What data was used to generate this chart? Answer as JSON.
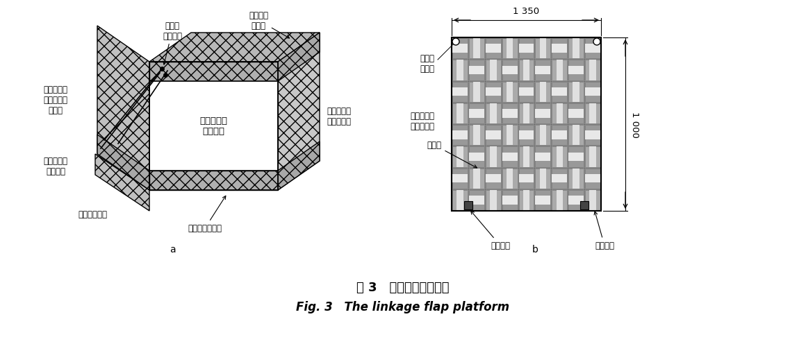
{
  "title_zh": "图3   联动翻转平台示意",
  "title_en": "Fig. 3   The linkage flap platform",
  "label_a": "a",
  "label_b": "b",
  "bg_color": "#ffffff",
  "dim_1350": "1 350",
  "dim_1000": "1 000",
  "lfs": 8.5
}
